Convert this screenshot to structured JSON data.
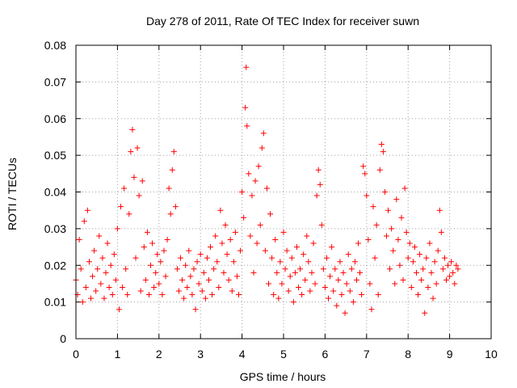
{
  "chart_data": {
    "type": "scatter",
    "title": "Day 278 of 2011, Rate Of TEC Index for receiver suwn",
    "xlabel": "GPS time / hours",
    "ylabel": "ROTI / TECUs",
    "xlim": [
      0,
      10
    ],
    "ylim": [
      0,
      0.08
    ],
    "xticks": [
      "0",
      "1",
      "2",
      "3",
      "4",
      "5",
      "6",
      "7",
      "8",
      "9",
      "10"
    ],
    "yticks": [
      "0",
      "0.01",
      "0.02",
      "0.03",
      "0.04",
      "0.05",
      "0.06",
      "0.07",
      "0.08"
    ],
    "grid": true,
    "marker": "+",
    "series_color": "#ff0000",
    "series": [
      {
        "name": "ROTI",
        "points": [
          [
            0.0,
            0.016
          ],
          [
            0.04,
            0.012
          ],
          [
            0.08,
            0.027
          ],
          [
            0.12,
            0.019
          ],
          [
            0.16,
            0.01
          ],
          [
            0.2,
            0.032
          ],
          [
            0.24,
            0.014
          ],
          [
            0.28,
            0.035
          ],
          [
            0.32,
            0.021
          ],
          [
            0.36,
            0.011
          ],
          [
            0.4,
            0.017
          ],
          [
            0.44,
            0.024
          ],
          [
            0.48,
            0.013
          ],
          [
            0.52,
            0.019
          ],
          [
            0.56,
            0.028
          ],
          [
            0.6,
            0.015
          ],
          [
            0.64,
            0.022
          ],
          [
            0.68,
            0.011
          ],
          [
            0.72,
            0.018
          ],
          [
            0.76,
            0.026
          ],
          [
            0.8,
            0.014
          ],
          [
            0.84,
            0.02
          ],
          [
            0.88,
            0.012
          ],
          [
            0.92,
            0.023
          ],
          [
            0.96,
            0.016
          ],
          [
            1.0,
            0.03
          ],
          [
            1.04,
            0.008
          ],
          [
            1.08,
            0.036
          ],
          [
            1.12,
            0.014
          ],
          [
            1.16,
            0.041
          ],
          [
            1.2,
            0.019
          ],
          [
            1.24,
            0.012
          ],
          [
            1.28,
            0.034
          ],
          [
            1.32,
            0.051
          ],
          [
            1.36,
            0.057
          ],
          [
            1.4,
            0.044
          ],
          [
            1.44,
            0.022
          ],
          [
            1.48,
            0.052
          ],
          [
            1.52,
            0.039
          ],
          [
            1.56,
            0.013
          ],
          [
            1.6,
            0.043
          ],
          [
            1.64,
            0.025
          ],
          [
            1.68,
            0.016
          ],
          [
            1.72,
            0.029
          ],
          [
            1.76,
            0.012
          ],
          [
            1.8,
            0.02
          ],
          [
            1.84,
            0.026
          ],
          [
            1.88,
            0.014
          ],
          [
            1.92,
            0.018
          ],
          [
            1.96,
            0.023
          ],
          [
            2.0,
            0.015
          ],
          [
            2.04,
            0.021
          ],
          [
            2.08,
            0.012
          ],
          [
            2.12,
            0.024
          ],
          [
            2.16,
            0.017
          ],
          [
            2.2,
            0.027
          ],
          [
            2.24,
            0.041
          ],
          [
            2.28,
            0.034
          ],
          [
            2.32,
            0.046
          ],
          [
            2.36,
            0.051
          ],
          [
            2.4,
            0.036
          ],
          [
            2.44,
            0.019
          ],
          [
            2.48,
            0.013
          ],
          [
            2.52,
            0.022
          ],
          [
            2.56,
            0.016
          ],
          [
            2.6,
            0.011
          ],
          [
            2.64,
            0.02
          ],
          [
            2.68,
            0.014
          ],
          [
            2.72,
            0.024
          ],
          [
            2.76,
            0.017
          ],
          [
            2.8,
            0.012
          ],
          [
            2.84,
            0.019
          ],
          [
            2.88,
            0.008
          ],
          [
            2.92,
            0.021
          ],
          [
            2.96,
            0.015
          ],
          [
            3.0,
            0.023
          ],
          [
            3.04,
            0.013
          ],
          [
            3.08,
            0.018
          ],
          [
            3.12,
            0.011
          ],
          [
            3.16,
            0.022
          ],
          [
            3.2,
            0.016
          ],
          [
            3.24,
            0.025
          ],
          [
            3.28,
            0.012
          ],
          [
            3.32,
            0.019
          ],
          [
            3.36,
            0.028
          ],
          [
            3.4,
            0.021
          ],
          [
            3.44,
            0.014
          ],
          [
            3.48,
            0.035
          ],
          [
            3.52,
            0.026
          ],
          [
            3.56,
            0.018
          ],
          [
            3.6,
            0.031
          ],
          [
            3.64,
            0.023
          ],
          [
            3.68,
            0.016
          ],
          [
            3.72,
            0.027
          ],
          [
            3.76,
            0.013
          ],
          [
            3.8,
            0.021
          ],
          [
            3.84,
            0.029
          ],
          [
            3.88,
            0.017
          ],
          [
            3.92,
            0.012
          ],
          [
            3.96,
            0.024
          ],
          [
            4.0,
            0.04
          ],
          [
            4.04,
            0.033
          ],
          [
            4.08,
            0.063
          ],
          [
            4.1,
            0.074
          ],
          [
            4.12,
            0.058
          ],
          [
            4.16,
            0.045
          ],
          [
            4.2,
            0.028
          ],
          [
            4.24,
            0.039
          ],
          [
            4.28,
            0.018
          ],
          [
            4.32,
            0.043
          ],
          [
            4.36,
            0.026
          ],
          [
            4.4,
            0.047
          ],
          [
            4.44,
            0.031
          ],
          [
            4.48,
            0.052
          ],
          [
            4.52,
            0.056
          ],
          [
            4.56,
            0.024
          ],
          [
            4.6,
            0.041
          ],
          [
            4.64,
            0.015
          ],
          [
            4.68,
            0.034
          ],
          [
            4.72,
            0.022
          ],
          [
            4.76,
            0.012
          ],
          [
            4.8,
            0.027
          ],
          [
            4.84,
            0.018
          ],
          [
            4.88,
            0.011
          ],
          [
            4.92,
            0.021
          ],
          [
            4.96,
            0.015
          ],
          [
            5.0,
            0.029
          ],
          [
            5.04,
            0.019
          ],
          [
            5.08,
            0.024
          ],
          [
            5.12,
            0.013
          ],
          [
            5.16,
            0.017
          ],
          [
            5.2,
            0.022
          ],
          [
            5.24,
            0.01
          ],
          [
            5.28,
            0.018
          ],
          [
            5.32,
            0.025
          ],
          [
            5.36,
            0.014
          ],
          [
            5.4,
            0.019
          ],
          [
            5.44,
            0.012
          ],
          [
            5.48,
            0.023
          ],
          [
            5.52,
            0.016
          ],
          [
            5.56,
            0.028
          ],
          [
            5.6,
            0.021
          ],
          [
            5.64,
            0.013
          ],
          [
            5.68,
            0.018
          ],
          [
            5.72,
            0.026
          ],
          [
            5.76,
            0.015
          ],
          [
            5.8,
            0.039
          ],
          [
            5.84,
            0.046
          ],
          [
            5.88,
            0.042
          ],
          [
            5.92,
            0.031
          ],
          [
            5.96,
            0.019
          ],
          [
            6.0,
            0.014
          ],
          [
            6.04,
            0.022
          ],
          [
            6.08,
            0.011
          ],
          [
            6.12,
            0.017
          ],
          [
            6.16,
            0.025
          ],
          [
            6.2,
            0.013
          ],
          [
            6.24,
            0.019
          ],
          [
            6.28,
            0.009
          ],
          [
            6.32,
            0.016
          ],
          [
            6.36,
            0.021
          ],
          [
            6.4,
            0.012
          ],
          [
            6.44,
            0.018
          ],
          [
            6.48,
            0.007
          ],
          [
            6.52,
            0.015
          ],
          [
            6.56,
            0.023
          ],
          [
            6.6,
            0.013
          ],
          [
            6.64,
            0.019
          ],
          [
            6.68,
            0.01
          ],
          [
            6.72,
            0.021
          ],
          [
            6.76,
            0.016
          ],
          [
            6.8,
            0.026
          ],
          [
            6.84,
            0.018
          ],
          [
            6.88,
            0.012
          ],
          [
            6.92,
            0.047
          ],
          [
            6.96,
            0.045
          ],
          [
            7.0,
            0.039
          ],
          [
            7.04,
            0.027
          ],
          [
            7.08,
            0.015
          ],
          [
            7.12,
            0.008
          ],
          [
            7.16,
            0.036
          ],
          [
            7.2,
            0.022
          ],
          [
            7.24,
            0.031
          ],
          [
            7.28,
            0.012
          ],
          [
            7.32,
            0.046
          ],
          [
            7.36,
            0.053
          ],
          [
            7.4,
            0.051
          ],
          [
            7.44,
            0.04
          ],
          [
            7.48,
            0.028
          ],
          [
            7.52,
            0.035
          ],
          [
            7.56,
            0.019
          ],
          [
            7.6,
            0.03
          ],
          [
            7.64,
            0.024
          ],
          [
            7.68,
            0.015
          ],
          [
            7.72,
            0.038
          ],
          [
            7.76,
            0.027
          ],
          [
            7.8,
            0.02
          ],
          [
            7.84,
            0.033
          ],
          [
            7.88,
            0.016
          ],
          [
            7.92,
            0.041
          ],
          [
            7.96,
            0.029
          ],
          [
            8.0,
            0.022
          ],
          [
            8.04,
            0.026
          ],
          [
            8.08,
            0.014
          ],
          [
            8.12,
            0.021
          ],
          [
            8.16,
            0.025
          ],
          [
            8.2,
            0.018
          ],
          [
            8.24,
            0.012
          ],
          [
            8.28,
            0.023
          ],
          [
            8.32,
            0.016
          ],
          [
            8.36,
            0.019
          ],
          [
            8.4,
            0.007
          ],
          [
            8.44,
            0.022
          ],
          [
            8.48,
            0.014
          ],
          [
            8.52,
            0.026
          ],
          [
            8.56,
            0.018
          ],
          [
            8.6,
            0.011
          ],
          [
            8.64,
            0.021
          ],
          [
            8.68,
            0.015
          ],
          [
            8.72,
            0.024
          ],
          [
            8.76,
            0.035
          ],
          [
            8.8,
            0.029
          ],
          [
            8.84,
            0.019
          ],
          [
            8.88,
            0.022
          ],
          [
            8.92,
            0.016
          ],
          [
            8.96,
            0.02
          ],
          [
            9.0,
            0.017
          ],
          [
            9.04,
            0.021
          ],
          [
            9.08,
            0.018
          ],
          [
            9.12,
            0.015
          ],
          [
            9.16,
            0.02
          ],
          [
            9.2,
            0.019
          ]
        ]
      }
    ]
  }
}
